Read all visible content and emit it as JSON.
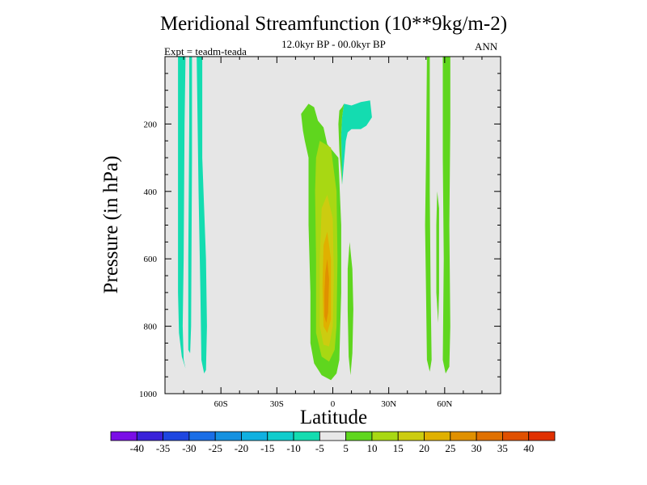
{
  "header": {
    "title": "Meridional Streamfunction (10**9kg/m-2)",
    "subtitle": "12.0kyr BP - 00.0kyr BP",
    "expt": "Expt = teadm-teada",
    "season": "ANN"
  },
  "chart_data": {
    "type": "contour",
    "title": "Meridional Streamfunction (10**9kg/m-2)",
    "subtitle": "12.0kyr BP - 00.0kyr BP",
    "xlabel": "Latitude",
    "ylabel": "Pressure (in hPa)",
    "xlim": [
      -90,
      90
    ],
    "ylim": [
      1000,
      0
    ],
    "xticks": [
      {
        "value": -60,
        "label": "60S"
      },
      {
        "value": -30,
        "label": "30S"
      },
      {
        "value": 0,
        "label": "0"
      },
      {
        "value": 30,
        "label": "30N"
      },
      {
        "value": 60,
        "label": "60N"
      }
    ],
    "yticks": [
      {
        "value": 200,
        "label": "200"
      },
      {
        "value": 400,
        "label": "400"
      },
      {
        "value": 600,
        "label": "600"
      },
      {
        "value": 800,
        "label": "800"
      },
      {
        "value": 1000,
        "label": "1000"
      }
    ],
    "colorbar": {
      "levels": [
        "-40",
        "-35",
        "-30",
        "-25",
        "-20",
        "-15",
        "-10",
        "-5",
        "5",
        "10",
        "15",
        "20",
        "25",
        "30",
        "35",
        "40"
      ],
      "colors": [
        "#7a0ee6",
        "#3a22d9",
        "#1e46e0",
        "#1a6ee6",
        "#1591e0",
        "#10b0e0",
        "#10cccc",
        "#14dcb0",
        "#e8e8e8",
        "#5fd61e",
        "#a8d813",
        "#cccc10",
        "#e0b000",
        "#e09000",
        "#e07000",
        "#e05000",
        "#e03000"
      ]
    },
    "regions": [
      {
        "name": "sh-high-lat-negative-1",
        "class": "-10 to -5",
        "color": "#14dcb0",
        "points": [
          [
            -83,
            0
          ],
          [
            -79,
            0
          ],
          [
            -79.5,
            200
          ],
          [
            -80,
            600
          ],
          [
            -80.5,
            800
          ],
          [
            -80,
            900
          ],
          [
            -79,
            925
          ],
          [
            -81,
            890
          ],
          [
            -82.5,
            820
          ],
          [
            -83,
            700
          ],
          [
            -83,
            400
          ]
        ]
      },
      {
        "name": "sh-high-lat-negative-2",
        "class": "-10 to -5",
        "color": "#14dcb0",
        "points": [
          [
            -77,
            0
          ],
          [
            -75.5,
            0
          ],
          [
            -75.5,
            300
          ],
          [
            -76,
            800
          ],
          [
            -76.5,
            880
          ],
          [
            -77.5,
            870
          ],
          [
            -77.5,
            600
          ],
          [
            -77,
            200
          ]
        ]
      },
      {
        "name": "sh-high-lat-negative-3",
        "class": "-10 to -5",
        "color": "#14dcb0",
        "points": [
          [
            -73,
            0
          ],
          [
            -70,
            0
          ],
          [
            -70,
            300
          ],
          [
            -68,
            600
          ],
          [
            -67.5,
            800
          ],
          [
            -68,
            930
          ],
          [
            -69,
            940
          ],
          [
            -70.5,
            900
          ],
          [
            -71,
            700
          ],
          [
            -72,
            400
          ]
        ]
      },
      {
        "name": "tropical-positive-outer",
        "class": "5 to 10",
        "color": "#5fd61e",
        "points": [
          [
            -17,
            170
          ],
          [
            -13,
            140
          ],
          [
            -10,
            150
          ],
          [
            -8,
            190
          ],
          [
            -5,
            210
          ],
          [
            -3,
            260
          ],
          [
            3,
            300
          ],
          [
            4.5,
            500
          ],
          [
            4.5,
            700
          ],
          [
            4,
            800
          ],
          [
            3.5,
            900
          ],
          [
            2,
            940
          ],
          [
            -1,
            960
          ],
          [
            -6,
            945
          ],
          [
            -10,
            910
          ],
          [
            -12,
            850
          ],
          [
            -12,
            700
          ],
          [
            -13,
            500
          ],
          [
            -13,
            300
          ],
          [
            -15,
            250
          ],
          [
            -16,
            220
          ]
        ]
      },
      {
        "name": "tropical-positive-1",
        "class": "10 to 15",
        "color": "#a8d813",
        "points": [
          [
            -7,
            250
          ],
          [
            -1,
            270
          ],
          [
            2,
            400
          ],
          [
            2.5,
            600
          ],
          [
            2,
            800
          ],
          [
            1,
            870
          ],
          [
            -2,
            905
          ],
          [
            -6,
            890
          ],
          [
            -9,
            820
          ],
          [
            -9,
            600
          ],
          [
            -9.5,
            400
          ],
          [
            -9,
            300
          ]
        ]
      },
      {
        "name": "tropical-positive-2",
        "class": "15 to 20",
        "color": "#cccc10",
        "points": [
          [
            -3,
            410
          ],
          [
            0,
            480
          ],
          [
            0.5,
            650
          ],
          [
            0,
            800
          ],
          [
            -2,
            860
          ],
          [
            -5,
            855
          ],
          [
            -7,
            800
          ],
          [
            -7,
            600
          ],
          [
            -6,
            450
          ]
        ]
      },
      {
        "name": "tropical-positive-3",
        "class": "20 to 25",
        "color": "#e0b000",
        "points": [
          [
            -3,
            520
          ],
          [
            -1,
            600
          ],
          [
            -1,
            780
          ],
          [
            -3,
            820
          ],
          [
            -5,
            800
          ],
          [
            -5.5,
            680
          ],
          [
            -5,
            560
          ]
        ]
      },
      {
        "name": "tropical-positive-core",
        "class": "25 to 30",
        "color": "#e09000",
        "points": [
          [
            -3,
            600
          ],
          [
            -2,
            660
          ],
          [
            -2.5,
            760
          ],
          [
            -3.5,
            790
          ],
          [
            -4.5,
            770
          ],
          [
            -4.5,
            700
          ],
          [
            -4,
            640
          ]
        ]
      },
      {
        "name": "nh-subtropical-negative",
        "class": "-10 to -5",
        "color": "#14dcb0",
        "points": [
          [
            6,
            140
          ],
          [
            10,
            145
          ],
          [
            15,
            135
          ],
          [
            20,
            130
          ],
          [
            21,
            180
          ],
          [
            18,
            205
          ],
          [
            15,
            215
          ],
          [
            10,
            215
          ],
          [
            8,
            225
          ],
          [
            7,
            250
          ],
          [
            5,
            380
          ],
          [
            4.5,
            230
          ],
          [
            5,
            180
          ]
        ]
      },
      {
        "name": "nh-subtropical-positive-upper",
        "class": "5 to 10",
        "color": "#5fd61e",
        "points": [
          [
            5,
            150
          ],
          [
            6,
            140
          ],
          [
            5,
            180
          ],
          [
            4.5,
            230
          ],
          [
            5,
            380
          ],
          [
            3.5,
            280
          ],
          [
            3,
            200
          ],
          [
            3.5,
            160
          ]
        ]
      },
      {
        "name": "nh-subtropical-positive-lower",
        "class": "5 to 10",
        "color": "#5fd61e",
        "points": [
          [
            9,
            550
          ],
          [
            10.5,
            630
          ],
          [
            11,
            750
          ],
          [
            10.5,
            880
          ],
          [
            9.5,
            945
          ],
          [
            8.5,
            890
          ],
          [
            8,
            750
          ],
          [
            8,
            630
          ]
        ]
      },
      {
        "name": "nh-high-lat-positive-1",
        "class": "5 to 10",
        "color": "#5fd61e",
        "points": [
          [
            50.5,
            0
          ],
          [
            52,
            0
          ],
          [
            52,
            400
          ],
          [
            52.5,
            700
          ],
          [
            53,
            900
          ],
          [
            52,
            935
          ],
          [
            50.5,
            900
          ],
          [
            50,
            700
          ],
          [
            49.5,
            500
          ],
          [
            50,
            300
          ]
        ]
      },
      {
        "name": "nh-high-lat-positive-2",
        "class": "5 to 10",
        "color": "#5fd61e",
        "points": [
          [
            56,
            400
          ],
          [
            57,
            450
          ],
          [
            57,
            700
          ],
          [
            56.5,
            790
          ],
          [
            55.5,
            700
          ],
          [
            55.5,
            500
          ]
        ]
      },
      {
        "name": "nh-high-lat-positive-3",
        "class": "5 to 10",
        "color": "#5fd61e",
        "points": [
          [
            59,
            0
          ],
          [
            63,
            0
          ],
          [
            63,
            200
          ],
          [
            62.5,
            500
          ],
          [
            63,
            800
          ],
          [
            62.5,
            920
          ],
          [
            60.5,
            940
          ],
          [
            59,
            900
          ],
          [
            59.5,
            600
          ],
          [
            59,
            300
          ]
        ]
      }
    ]
  }
}
